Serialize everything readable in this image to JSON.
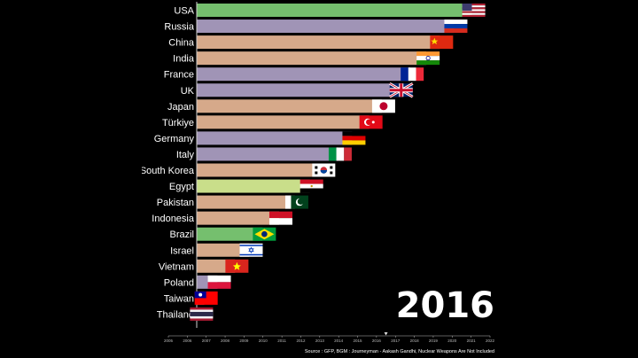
{
  "chart_data": {
    "type": "bar",
    "title": "",
    "year_label": "2016",
    "categories": [
      "USA",
      "Russia",
      "China",
      "India",
      "France",
      "UK",
      "Japan",
      "Türkiye",
      "Germany",
      "Italy",
      "South Korea",
      "Egypt",
      "Pakistan",
      "Indonesia",
      "Brazil",
      "Israel",
      "Vietnam",
      "Poland",
      "Taiwan",
      "Thailand"
    ],
    "values": [
      100,
      93.5,
      88.3,
      83.4,
      77.6,
      73.6,
      67.2,
      62.6,
      56.4,
      51.4,
      45.4,
      41.0,
      35.6,
      29.8,
      23.8,
      19.0,
      13.8,
      7.4,
      2.6,
      0.9
    ],
    "colors": [
      "#75bf6e",
      "#a094b6",
      "#d6a98a",
      "#d6a98a",
      "#a094b6",
      "#a094b6",
      "#d6a98a",
      "#d6a98a",
      "#a094b6",
      "#a094b6",
      "#d6a98a",
      "#c9de8a",
      "#d6a98a",
      "#d6a98a",
      "#75bf6e",
      "#d6a98a",
      "#d6a98a",
      "#a094b6",
      "#d6a98a",
      "#d6a98a"
    ],
    "flags": [
      "usa-flag",
      "russia-flag",
      "china-flag",
      "india-flag",
      "france-flag",
      "uk-flag",
      "japan-flag",
      "turkiye-flag",
      "germany-flag",
      "italy-flag",
      "south-korea-flag",
      "egypt-flag",
      "pakistan-flag",
      "indonesia-flag",
      "brazil-flag",
      "israel-flag",
      "vietnam-flag",
      "poland-flag",
      "taiwan-flag",
      "thailand-flag"
    ],
    "timeline": {
      "ticks": [
        "2005",
        "2006",
        "2007",
        "2008",
        "2009",
        "2010",
        "2011",
        "2012",
        "2013",
        "2014",
        "2015",
        "2016",
        "2017",
        "2018",
        "2019",
        "2020",
        "2021",
        "2022"
      ],
      "current": "2016"
    },
    "source": "Source : GFP, BGM : Journeyman - Aakash Gandhi, Nuclear Weapons Are Not Included"
  }
}
